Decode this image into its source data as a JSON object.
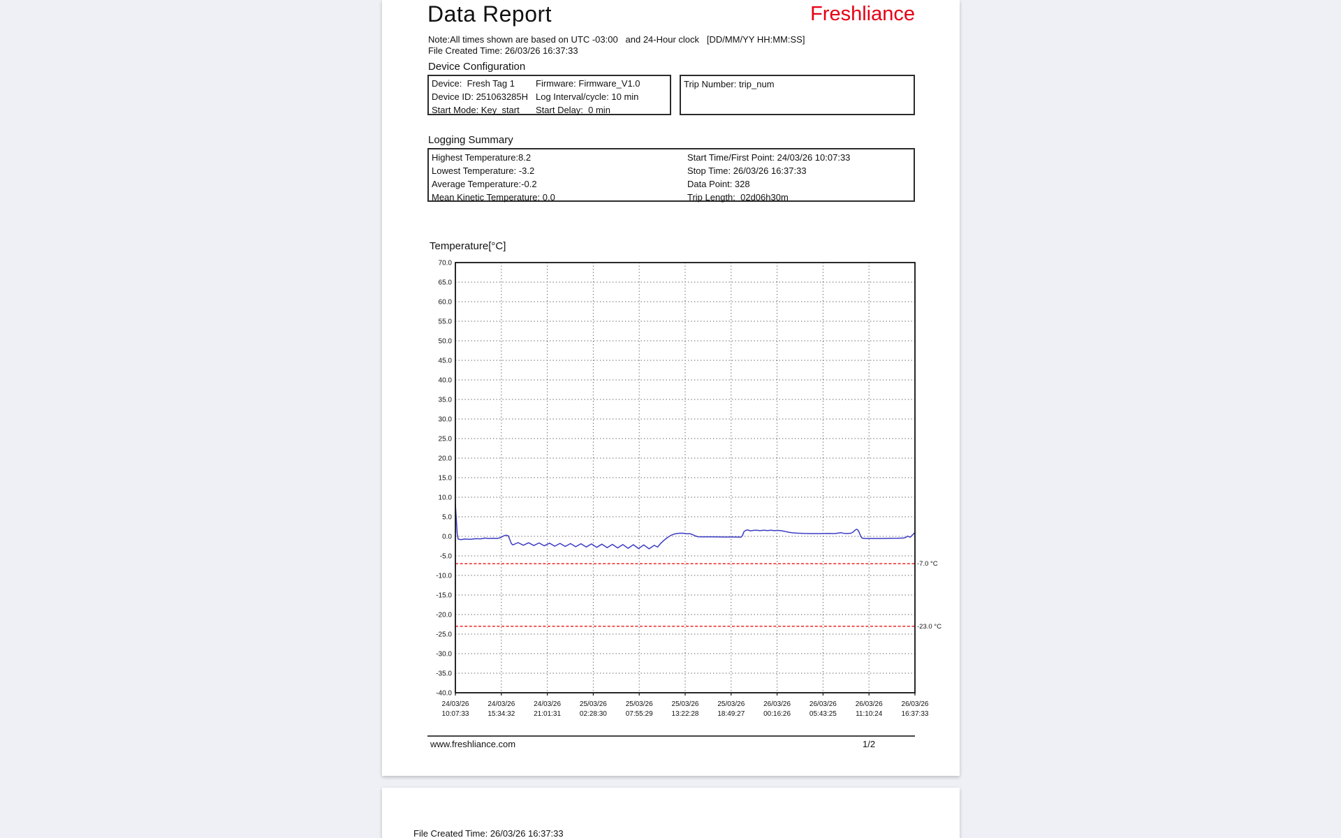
{
  "page1": {
    "title": "Data Report",
    "brand": "Freshliance",
    "brand_color": "#e60014",
    "note": "Note:All times shown are based on UTC -03:00   and 24-Hour clock   [DD/MM/YY HH:MM:SS]",
    "file_created": "File Created Time: 26/03/26 16:37:33",
    "device_config": {
      "heading": "Device Configuration",
      "rows": [
        [
          "Device:  Fresh Tag 1",
          "Firmware: Firmware_V1.0"
        ],
        [
          "Device ID: 251063285H",
          "Log Interval/cycle: 10 min"
        ],
        [
          "Start Mode: Key_start",
          "Start Delay:  0 min"
        ]
      ],
      "trip_number": "Trip Number: trip_num"
    },
    "logging_summary": {
      "heading": "Logging Summary",
      "left": [
        "Highest Temperature:8.2",
        "Lowest Temperature: -3.2",
        "Average Temperature:-0.2",
        "Mean Kinetic Temperature: 0.0"
      ],
      "right": [
        "Start Time/First Point: 24/03/26 10:07:33",
        "Stop Time: 26/03/26 16:37:33",
        "Data Point: 328",
        "Trip Length:  02d06h30m"
      ]
    },
    "footer": {
      "website": "www.freshliance.com",
      "page_number": "1/2"
    }
  },
  "page2": {
    "file_created": "File Created Time: 26/03/26 16:37:33"
  },
  "chart_data": {
    "type": "line",
    "title": "Temperature[°C]",
    "xlabel": "",
    "ylabel": "Temperature",
    "ylim": [
      -40,
      70
    ],
    "grid": true,
    "legend_position": "none",
    "line_color": "#3b3bc4",
    "threshold_color": "#ee1111",
    "yticks": [
      70,
      65,
      60,
      55,
      50,
      45,
      40,
      35,
      30,
      25,
      20,
      15,
      10,
      5,
      0,
      -5,
      -10,
      -15,
      -20,
      -25,
      -30,
      -35,
      -40
    ],
    "x_tick_labels": [
      [
        "24/03/26",
        "10:07:33"
      ],
      [
        "24/03/26",
        "15:34:32"
      ],
      [
        "24/03/26",
        "21:01:31"
      ],
      [
        "25/03/26",
        "02:28:30"
      ],
      [
        "25/03/26",
        "07:55:29"
      ],
      [
        "25/03/26",
        "13:22:28"
      ],
      [
        "25/03/26",
        "18:49:27"
      ],
      [
        "26/03/26",
        "00:16:26"
      ],
      [
        "26/03/26",
        "05:43:25"
      ],
      [
        "26/03/26",
        "11:10:24"
      ],
      [
        "26/03/26",
        "16:37:33"
      ]
    ],
    "thresholds": [
      {
        "value": -7.0,
        "label": "-7.0  °C"
      },
      {
        "value": -23.0,
        "label": "-23.0 °C"
      }
    ],
    "series": [
      {
        "name": "Temperature",
        "points": [
          [
            0.0,
            8.2
          ],
          [
            0.002,
            4.5
          ],
          [
            0.004,
            0.6
          ],
          [
            0.006,
            -0.7
          ],
          [
            0.012,
            -0.85
          ],
          [
            0.02,
            -0.7
          ],
          [
            0.032,
            -0.75
          ],
          [
            0.045,
            -0.6
          ],
          [
            0.055,
            -0.65
          ],
          [
            0.065,
            -0.45
          ],
          [
            0.072,
            -0.55
          ],
          [
            0.082,
            -0.5
          ],
          [
            0.09,
            -0.55
          ],
          [
            0.098,
            -0.35
          ],
          [
            0.104,
            0.05
          ],
          [
            0.11,
            0.3
          ],
          [
            0.115,
            0.15
          ],
          [
            0.119,
            -1.0
          ],
          [
            0.122,
            -1.9
          ],
          [
            0.125,
            -2.2
          ],
          [
            0.1364,
            -1.6
          ],
          [
            0.1478,
            -2.28
          ],
          [
            0.1592,
            -1.65
          ],
          [
            0.1706,
            -2.35
          ],
          [
            0.182,
            -1.7
          ],
          [
            0.1934,
            -2.43
          ],
          [
            0.2048,
            -1.75
          ],
          [
            0.2162,
            -2.51
          ],
          [
            0.2276,
            -1.8
          ],
          [
            0.239,
            -2.59
          ],
          [
            0.2504,
            -1.85
          ],
          [
            0.2618,
            -2.66
          ],
          [
            0.2732,
            -1.9
          ],
          [
            0.2846,
            -2.74
          ],
          [
            0.296,
            -1.95
          ],
          [
            0.3074,
            -2.82
          ],
          [
            0.3188,
            -2.0
          ],
          [
            0.3302,
            -2.89
          ],
          [
            0.3416,
            -2.05
          ],
          [
            0.353,
            -2.97
          ],
          [
            0.3644,
            -2.1
          ],
          [
            0.3758,
            -3.05
          ],
          [
            0.3872,
            -2.15
          ],
          [
            0.3986,
            -3.12
          ],
          [
            0.41,
            -2.2
          ],
          [
            0.4214,
            -3.2
          ],
          [
            0.4328,
            -2.3
          ],
          [
            0.44,
            -2.75
          ],
          [
            0.446,
            -1.9
          ],
          [
            0.453,
            -1.1
          ],
          [
            0.461,
            -0.35
          ],
          [
            0.469,
            0.25
          ],
          [
            0.477,
            0.6
          ],
          [
            0.486,
            0.78
          ],
          [
            0.495,
            0.8
          ],
          [
            0.503,
            0.65
          ],
          [
            0.51,
            0.68
          ],
          [
            0.516,
            0.45
          ],
          [
            0.522,
            0.1
          ],
          [
            0.528,
            -0.1
          ],
          [
            0.54,
            -0.15
          ],
          [
            0.56,
            -0.15
          ],
          [
            0.585,
            -0.18
          ],
          [
            0.61,
            -0.18
          ],
          [
            0.622,
            -0.2
          ],
          [
            0.625,
            0.3
          ],
          [
            0.628,
            1.2
          ],
          [
            0.632,
            1.55
          ],
          [
            0.637,
            1.6
          ],
          [
            0.642,
            1.4
          ],
          [
            0.648,
            1.52
          ],
          [
            0.655,
            1.55
          ],
          [
            0.663,
            1.45
          ],
          [
            0.671,
            1.55
          ],
          [
            0.679,
            1.48
          ],
          [
            0.687,
            1.55
          ],
          [
            0.694,
            1.45
          ],
          [
            0.701,
            1.52
          ],
          [
            0.708,
            1.45
          ],
          [
            0.716,
            1.28
          ],
          [
            0.725,
            1.05
          ],
          [
            0.734,
            0.9
          ],
          [
            0.745,
            0.8
          ],
          [
            0.758,
            0.73
          ],
          [
            0.775,
            0.7
          ],
          [
            0.795,
            0.7
          ],
          [
            0.812,
            0.73
          ],
          [
            0.825,
            0.7
          ],
          [
            0.833,
            0.82
          ],
          [
            0.839,
            0.92
          ],
          [
            0.845,
            0.76
          ],
          [
            0.853,
            0.72
          ],
          [
            0.861,
            0.8
          ],
          [
            0.866,
            1.15
          ],
          [
            0.87,
            1.6
          ],
          [
            0.873,
            1.8
          ],
          [
            0.876,
            1.6
          ],
          [
            0.879,
            0.9
          ],
          [
            0.882,
            0.0
          ],
          [
            0.885,
            -0.45
          ],
          [
            0.89,
            -0.55
          ],
          [
            0.905,
            -0.55
          ],
          [
            0.925,
            -0.55
          ],
          [
            0.945,
            -0.52
          ],
          [
            0.962,
            -0.5
          ],
          [
            0.974,
            -0.45
          ],
          [
            0.98,
            -0.3
          ],
          [
            0.984,
            0.05
          ],
          [
            0.987,
            -0.1
          ],
          [
            0.99,
            -0.2
          ],
          [
            0.993,
            0.15
          ],
          [
            0.996,
            0.5
          ],
          [
            0.999,
            0.85
          ]
        ]
      }
    ]
  }
}
